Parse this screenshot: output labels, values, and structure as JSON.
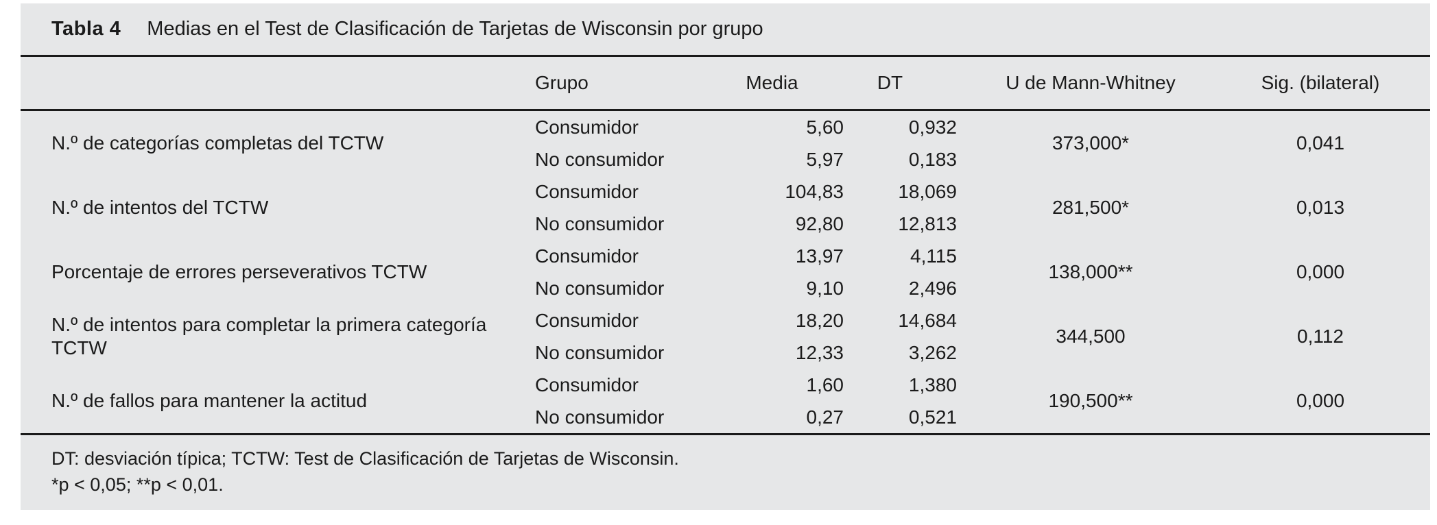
{
  "colors": {
    "panel_background": "#e6e7e8",
    "text": "#1b1b1b",
    "rule": "#1a1a1a",
    "page_background": "#ffffff"
  },
  "table": {
    "title_label": "Tabla 4",
    "title": "Medias en el Test de Clasificación de Tarjetas de Wisconsin por grupo",
    "headers": {
      "measure": "",
      "grupo": "Grupo",
      "media": "Media",
      "dt": "DT",
      "u": "U de Mann-Whitney",
      "sig": "Sig. (bilateral)"
    },
    "rows": [
      {
        "label": "N.º de categorías completas del TCTW",
        "groups": [
          {
            "name": "Consumidor",
            "media": "5,60",
            "dt": "0,932"
          },
          {
            "name": "No consumidor",
            "media": "5,97",
            "dt": "0,183"
          }
        ],
        "u": "373,000*",
        "sig": "0,041"
      },
      {
        "label": "N.º de intentos del TCTW",
        "groups": [
          {
            "name": "Consumidor",
            "media": "104,83",
            "dt": "18,069"
          },
          {
            "name": "No consumidor",
            "media": "92,80",
            "dt": "12,813"
          }
        ],
        "u": "281,500*",
        "sig": "0,013"
      },
      {
        "label": "Porcentaje de errores perseverativos TCTW",
        "groups": [
          {
            "name": "Consumidor",
            "media": "13,97",
            "dt": "4,115"
          },
          {
            "name": "No consumidor",
            "media": "9,10",
            "dt": "2,496"
          }
        ],
        "u": "138,000**",
        "sig": "0,000"
      },
      {
        "label": "N.º de intentos para completar la primera categoría TCTW",
        "groups": [
          {
            "name": "Consumidor",
            "media": "18,20",
            "dt": "14,684"
          },
          {
            "name": "No consumidor",
            "media": "12,33",
            "dt": "3,262"
          }
        ],
        "u": "344,500",
        "sig": "0,112"
      },
      {
        "label": "N.º de fallos para mantener la actitud",
        "groups": [
          {
            "name": "Consumidor",
            "media": "1,60",
            "dt": "1,380"
          },
          {
            "name": "No consumidor",
            "media": "0,27",
            "dt": "0,521"
          }
        ],
        "u": "190,500**",
        "sig": "0,000"
      }
    ],
    "footnotes": [
      "DT: desviación típica; TCTW: Test de Clasificación de Tarjetas de Wisconsin.",
      "*p < 0,05; **p < 0,01."
    ]
  }
}
